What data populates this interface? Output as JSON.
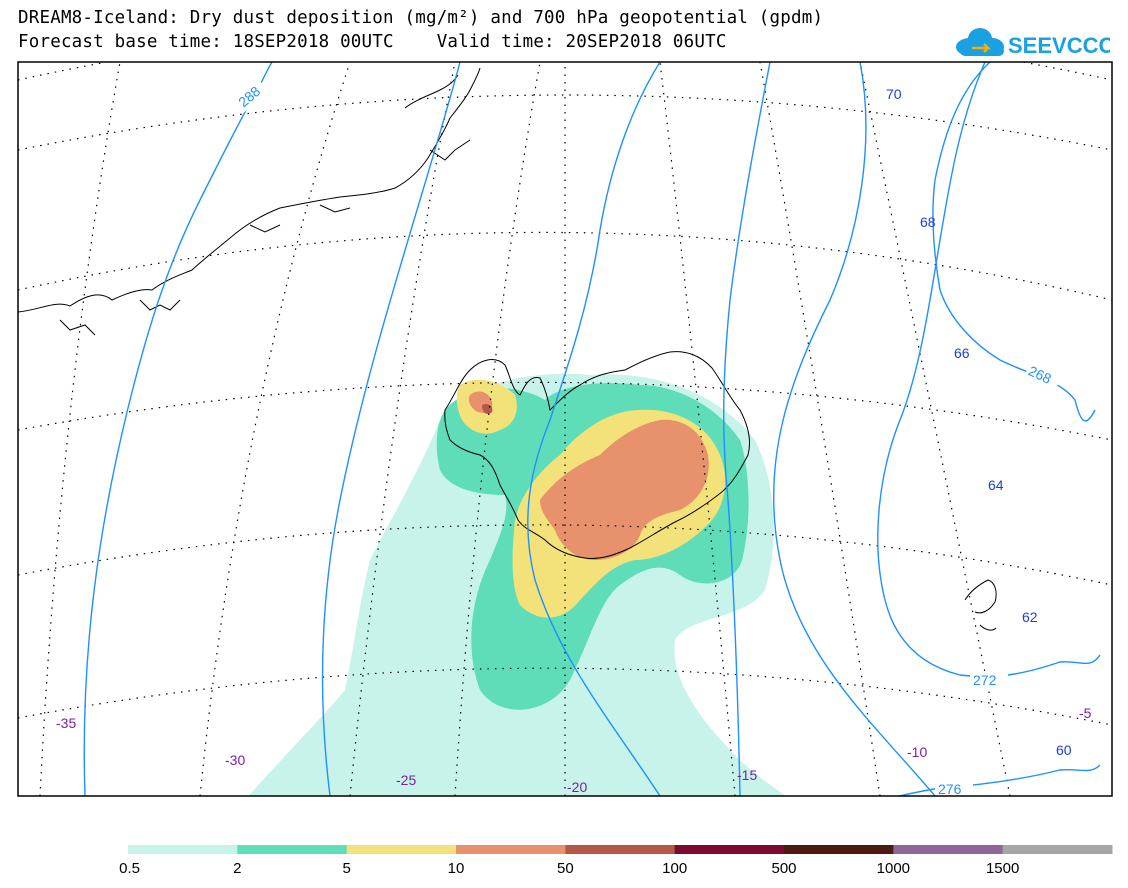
{
  "header": {
    "title_line1": "DREAM8-Iceland: Dry dust deposition (mg/m²) and 700 hPa geopotential (gpdm)",
    "title_line2": "Forecast base time: 18SEP2018 00UTC    Valid time: 20SEP2018 06UTC"
  },
  "logo": {
    "text": "SEEVCCC",
    "color": "#1ba1e2"
  },
  "map": {
    "geopotential_contour_labels": [
      "288",
      "268",
      "272",
      "276"
    ],
    "latitude_labels": [
      "70",
      "68",
      "66",
      "64",
      "62",
      "60"
    ],
    "longitude_labels": [
      "-35",
      "-30",
      "-25",
      "-20",
      "-15",
      "-10",
      "-5"
    ],
    "contour_color": "#1e90ff",
    "lat_label_color": "#1a3fd6",
    "lon_label_color": "#7b1fa2"
  },
  "colorbar": {
    "tick_labels": [
      "0.5",
      "2",
      "5",
      "10",
      "50",
      "100",
      "500",
      "1000",
      "1500"
    ],
    "colors": [
      "#c8f3ea",
      "#5fdcb8",
      "#f3e27a",
      "#e7916d",
      "#b4584a",
      "#7a0a2e",
      "#4c1a10",
      "#8e6798",
      "#a6a6a6"
    ]
  }
}
